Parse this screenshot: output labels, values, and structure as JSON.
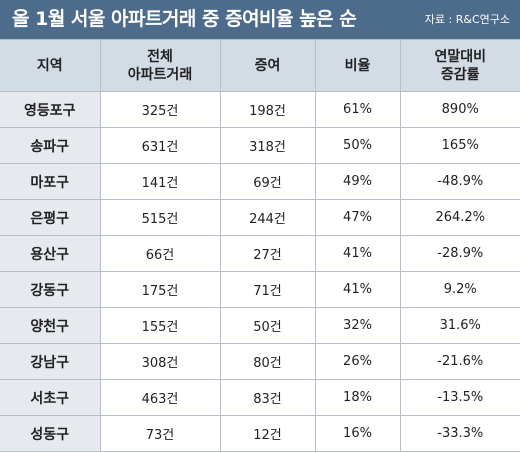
{
  "header": {
    "title": "올 1월 서울 아파트거래 중 증여비율 높은 순",
    "source": "자료 : R&C연구소"
  },
  "table": {
    "columns": [
      "지역",
      "전체\n아파트거래",
      "증여",
      "비율",
      "연말대비\n증감률"
    ],
    "rows": [
      [
        "영등포구",
        "325건",
        "198건",
        "61%",
        "890%"
      ],
      [
        "송파구",
        "631건",
        "318건",
        "50%",
        "165%"
      ],
      [
        "마포구",
        "141건",
        "69건",
        "49%",
        "-48.9%"
      ],
      [
        "은평구",
        "515건",
        "244건",
        "47%",
        "264.2%"
      ],
      [
        "용산구",
        "66건",
        "27건",
        "41%",
        "-28.9%"
      ],
      [
        "강동구",
        "175건",
        "71건",
        "41%",
        "9.2%"
      ],
      [
        "양천구",
        "155건",
        "50건",
        "32%",
        "31.6%"
      ],
      [
        "강남구",
        "308건",
        "80건",
        "26%",
        "-21.6%"
      ],
      [
        "서초구",
        "463건",
        "83건",
        "18%",
        "-13.5%"
      ],
      [
        "성동구",
        "73건",
        "12건",
        "16%",
        "-33.3%"
      ]
    ]
  }
}
